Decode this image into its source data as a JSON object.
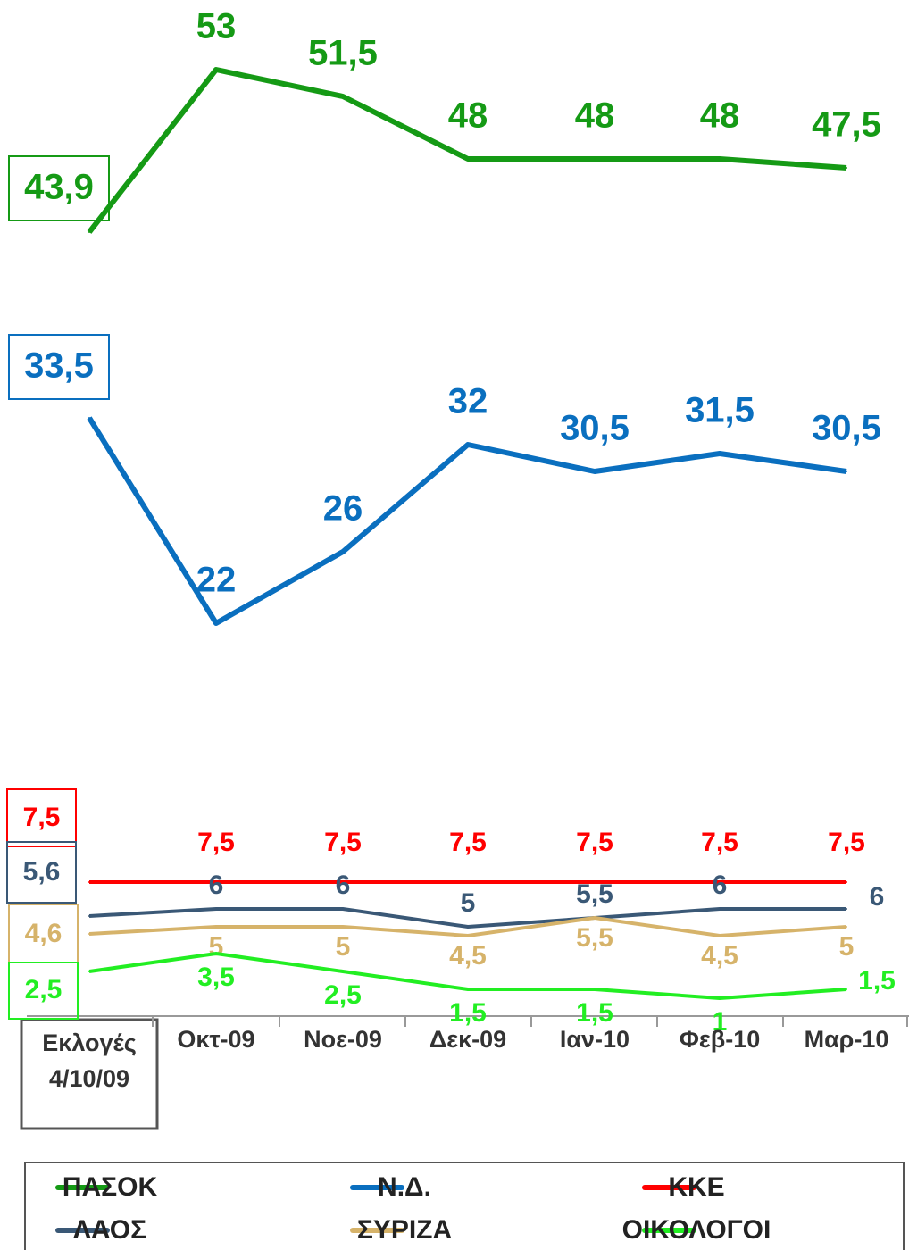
{
  "chart_data": {
    "type": "line",
    "categories": [
      "Εκλογές 4/10/09",
      "Οκτ-09",
      "Νοε-09",
      "Δεκ-09",
      "Ιαν-10",
      "Φεβ-10",
      "Μαρ-10"
    ],
    "ylim": [
      0,
      56
    ],
    "series": [
      {
        "name": "ΠΑΣΟΚ",
        "color": "#159a15",
        "values": [
          43.9,
          53,
          51.5,
          48,
          48,
          48,
          47.5
        ],
        "value_labels": [
          "43,9",
          "53",
          "51,5",
          "48",
          "48",
          "48",
          "47,5"
        ]
      },
      {
        "name": "Ν.Δ.",
        "color": "#0a6fbf",
        "values": [
          33.5,
          22,
          26,
          32,
          30.5,
          31.5,
          30.5
        ],
        "value_labels": [
          "33,5",
          "22",
          "26",
          "32",
          "30,5",
          "31,5",
          "30,5"
        ]
      },
      {
        "name": "ΚΚΕ",
        "color": "#ff0000",
        "values": [
          7.5,
          7.5,
          7.5,
          7.5,
          7.5,
          7.5,
          7.5
        ],
        "value_labels": [
          "7,5",
          "7,5",
          "7,5",
          "7,5",
          "7,5",
          "7,5",
          "7,5"
        ]
      },
      {
        "name": "ΛΑΟΣ",
        "color": "#3a5876",
        "values": [
          5.6,
          6,
          6,
          5,
          5.5,
          6,
          6
        ],
        "value_labels": [
          "5,6",
          "6",
          "6",
          "5",
          "5,5",
          "6",
          "6"
        ]
      },
      {
        "name": "ΣΥΡΙΖΑ",
        "color": "#d6b36a",
        "values": [
          4.6,
          5,
          5,
          4.5,
          5.5,
          4.5,
          5
        ],
        "value_labels": [
          "4,6",
          "5",
          "5",
          "4,5",
          "5,5",
          "4,5",
          "5"
        ]
      },
      {
        "name": "ΟΙΚΟΛΟΓΟΙ",
        "color": "#22ee22",
        "values": [
          2.5,
          3.5,
          2.5,
          1.5,
          1.5,
          1,
          1.5
        ],
        "value_labels": [
          "2,5",
          "3,5",
          "2,5",
          "1,5",
          "1,5",
          "1",
          "1,5"
        ]
      }
    ]
  }
}
